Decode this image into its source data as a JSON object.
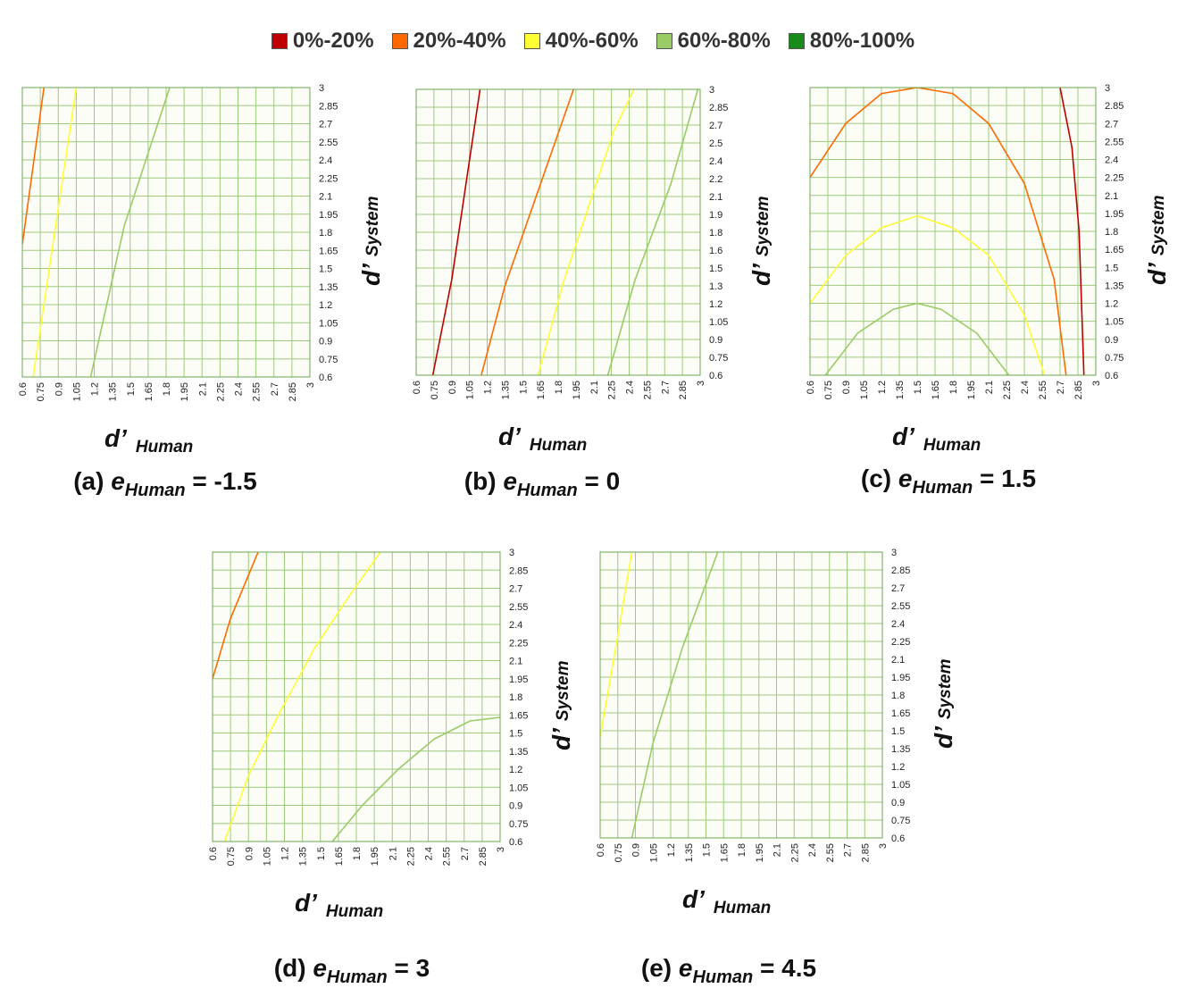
{
  "legend": [
    {
      "label": "0%-20%",
      "color": "#c00000"
    },
    {
      "label": "20%-40%",
      "color": "#ff6a00"
    },
    {
      "label": "40%-60%",
      "color": "#ffff33"
    },
    {
      "label": "60%-80%",
      "color": "#99cc66"
    },
    {
      "label": "80%-100%",
      "color": "#1a8a1a"
    }
  ],
  "chart_data": [
    {
      "type": "heatmap",
      "caption": {
        "prefix": "(a) ",
        "var": "e",
        "sub": "Human",
        "suffix": " = -1.5"
      },
      "xlabel": {
        "main": "d’",
        "sub": "Human"
      },
      "ylabel": {
        "main": "d’",
        "sub": "System"
      },
      "x_ticks": [
        "0.6",
        "0.75",
        "0.9",
        "1.05",
        "1.2",
        "1.35",
        "1.5",
        "1.65",
        "1.8",
        "1.95",
        "2.1",
        "2.25",
        "2.4",
        "2.55",
        "2.7",
        "2.85",
        "3"
      ],
      "y_ticks": [
        "0.6",
        "0.75",
        "0.9",
        "1.05",
        "1.2",
        "1.35",
        "1.5",
        "1.65",
        "1.8",
        "1.95",
        "2.1",
        "2.25",
        "2.4",
        "2.55",
        "2.7",
        "2.85",
        "3"
      ],
      "xlim": [
        0.6,
        3
      ],
      "ylim": [
        0.6,
        3
      ],
      "boundaries": [
        {
          "between": "20%-40% / 40%-60%",
          "points": [
            [
              0.6,
              1.7
            ],
            [
              0.78,
              3.0
            ]
          ]
        },
        {
          "between": "40%-60% / 60%-80%",
          "points": [
            [
              0.69,
              0.6
            ],
            [
              1.05,
              3.0
            ]
          ]
        },
        {
          "between": "60%-80% / 80%-100%",
          "points": [
            [
              1.17,
              0.6
            ],
            [
              1.45,
              1.85
            ],
            [
              1.83,
              3.0
            ]
          ]
        }
      ]
    },
    {
      "type": "heatmap",
      "caption": {
        "prefix": "(b) ",
        "var": "e",
        "sub": "Human",
        "suffix": " = 0"
      },
      "xlabel": {
        "main": "d’",
        "sub": "Human"
      },
      "ylabel": {
        "main": "d’",
        "sub": "System"
      },
      "x_ticks": [
        "0.6",
        "0.75",
        "0.9",
        "1.05",
        "1.2",
        "1.35",
        "1.5",
        "1.65",
        "1.8",
        "1.95",
        "2.1",
        "2.25",
        "2.4",
        "2.55",
        "2.7",
        "2.85",
        "3"
      ],
      "y_ticks": [
        "0.6",
        "0.75",
        "0.9",
        "1.05",
        "1.2",
        "1.3",
        "1.5",
        "1.6",
        "1.8",
        "1.9",
        "2.1",
        "2.2",
        "2.4",
        "2.5",
        "2.7",
        "2.85",
        "3"
      ],
      "xlim": [
        0.6,
        3
      ],
      "ylim": [
        0.6,
        3
      ],
      "boundaries": [
        {
          "between": "0%-20% / 20%-40%",
          "points": [
            [
              0.74,
              0.6
            ],
            [
              0.9,
              1.4
            ],
            [
              1.14,
              3.0
            ]
          ]
        },
        {
          "between": "20%-40% / 40%-60%",
          "points": [
            [
              1.15,
              0.6
            ],
            [
              1.35,
              1.35
            ],
            [
              1.93,
              3.0
            ]
          ]
        },
        {
          "between": "40%-60% / 60%-80%",
          "points": [
            [
              1.63,
              0.6
            ],
            [
              1.85,
              1.4
            ],
            [
              2.27,
              2.65
            ],
            [
              2.44,
              3.0
            ]
          ]
        },
        {
          "between": "60%-80% / 80%-100%",
          "points": [
            [
              2.22,
              0.6
            ],
            [
              2.45,
              1.4
            ],
            [
              2.75,
              2.2
            ],
            [
              2.98,
              3.0
            ]
          ]
        }
      ]
    },
    {
      "type": "heatmap",
      "caption": {
        "prefix": "(c) ",
        "var": "e",
        "sub": "Human",
        "suffix": " = 1.5"
      },
      "xlabel": {
        "main": "d’",
        "sub": "Human"
      },
      "ylabel": {
        "main": "d’",
        "sub": "System"
      },
      "x_ticks": [
        "0.6",
        "0.75",
        "0.9",
        "1.05",
        "1.2",
        "1.35",
        "1.5",
        "1.65",
        "1.8",
        "1.95",
        "2.1",
        "2.25",
        "2.4",
        "2.55",
        "2.7",
        "2.85",
        "3"
      ],
      "y_ticks": [
        "0.6",
        "0.75",
        "0.9",
        "1.05",
        "1.2",
        "1.35",
        "1.5",
        "1.65",
        "1.8",
        "1.95",
        "2.1",
        "2.25",
        "2.4",
        "2.55",
        "2.7",
        "2.85",
        "3"
      ],
      "xlim": [
        0.6,
        3
      ],
      "ylim": [
        0.6,
        3
      ],
      "boundaries": [
        {
          "between": "20%-40% / 40%-60%",
          "points": [
            [
              0.6,
              2.25
            ],
            [
              0.9,
              2.7
            ],
            [
              1.2,
              2.95
            ],
            [
              1.5,
              3.0
            ],
            [
              1.8,
              2.95
            ],
            [
              2.1,
              2.7
            ],
            [
              2.4,
              2.2
            ],
            [
              2.65,
              1.4
            ],
            [
              2.75,
              0.6
            ]
          ]
        },
        {
          "between": "0%-20% / 20%-40%",
          "points": [
            [
              2.7,
              3.0
            ],
            [
              2.8,
              2.5
            ],
            [
              2.86,
              1.8
            ],
            [
              2.9,
              0.6
            ]
          ]
        },
        {
          "between": "40%-60% / 60%-80%",
          "points": [
            [
              0.6,
              1.2
            ],
            [
              0.9,
              1.6
            ],
            [
              1.2,
              1.83
            ],
            [
              1.5,
              1.93
            ],
            [
              1.8,
              1.83
            ],
            [
              2.1,
              1.6
            ],
            [
              2.4,
              1.1
            ],
            [
              2.57,
              0.6
            ]
          ]
        },
        {
          "between": "60%-80% / 80%-100%",
          "points": [
            [
              0.73,
              0.6
            ],
            [
              1.0,
              0.95
            ],
            [
              1.3,
              1.15
            ],
            [
              1.5,
              1.2
            ],
            [
              1.7,
              1.15
            ],
            [
              2.0,
              0.95
            ],
            [
              2.27,
              0.6
            ]
          ]
        }
      ]
    },
    {
      "type": "heatmap",
      "caption": {
        "prefix": "(d) ",
        "var": "e",
        "sub": "Human",
        "suffix": " = 3"
      },
      "xlabel": {
        "main": "d’",
        "sub": "Human"
      },
      "ylabel": {
        "main": "d’",
        "sub": "System"
      },
      "x_ticks": [
        "0.6",
        "0.75",
        "0.9",
        "1.05",
        "1.2",
        "1.35",
        "1.5",
        "1.65",
        "1.8",
        "1.95",
        "2.1",
        "2.25",
        "2.4",
        "2.55",
        "2.7",
        "2.85",
        "3"
      ],
      "y_ticks": [
        "0.6",
        "0.75",
        "0.9",
        "1.05",
        "1.2",
        "1.35",
        "1.5",
        "1.65",
        "1.8",
        "1.95",
        "2.1",
        "2.25",
        "2.4",
        "2.55",
        "2.7",
        "2.85",
        "3"
      ],
      "xlim": [
        0.6,
        3
      ],
      "ylim": [
        0.6,
        3
      ],
      "boundaries": [
        {
          "between": "20%-40% / 40%-60%",
          "points": [
            [
              0.6,
              1.95
            ],
            [
              0.75,
              2.45
            ],
            [
              0.98,
              3.0
            ]
          ]
        },
        {
          "between": "40%-60% / 60%-80%",
          "points": [
            [
              0.7,
              0.6
            ],
            [
              0.9,
              1.15
            ],
            [
              1.15,
              1.65
            ],
            [
              1.45,
              2.2
            ],
            [
              1.75,
              2.65
            ],
            [
              2.0,
              3.0
            ]
          ]
        },
        {
          "between": "60%-80% / 80%-100%",
          "points": [
            [
              1.6,
              0.6
            ],
            [
              1.85,
              0.9
            ],
            [
              2.15,
              1.2
            ],
            [
              2.45,
              1.45
            ],
            [
              2.75,
              1.6
            ],
            [
              3.0,
              1.63
            ]
          ]
        }
      ]
    },
    {
      "type": "heatmap",
      "caption": {
        "prefix": "(e) ",
        "var": "e",
        "sub": "Human",
        "suffix": " = 4.5"
      },
      "xlabel": {
        "main": "d’",
        "sub": "Human"
      },
      "ylabel": {
        "main": "d’",
        "sub": "System"
      },
      "x_ticks": [
        "0.6",
        "0.75",
        "0.9",
        "1.05",
        "1.2",
        "1.35",
        "1.5",
        "1.65",
        "1.8",
        "1.95",
        "2.1",
        "2.25",
        "2.4",
        "2.55",
        "2.7",
        "2.85",
        "3"
      ],
      "y_ticks": [
        "0.6",
        "0.75",
        "0.9",
        "1.05",
        "1.2",
        "1.35",
        "1.5",
        "1.65",
        "1.8",
        "1.95",
        "2.1",
        "2.25",
        "2.4",
        "2.55",
        "2.7",
        "2.85",
        "3"
      ],
      "xlim": [
        0.6,
        3
      ],
      "ylim": [
        0.6,
        3
      ],
      "boundaries": [
        {
          "between": "40%-60% / 60%-80%",
          "points": [
            [
              0.6,
              1.45
            ],
            [
              0.75,
              2.3
            ],
            [
              0.87,
              3.0
            ]
          ]
        },
        {
          "between": "60%-80% / 80%-100%",
          "points": [
            [
              0.87,
              0.6
            ],
            [
              1.05,
              1.4
            ],
            [
              1.3,
              2.2
            ],
            [
              1.6,
              3.0
            ]
          ]
        }
      ]
    }
  ]
}
